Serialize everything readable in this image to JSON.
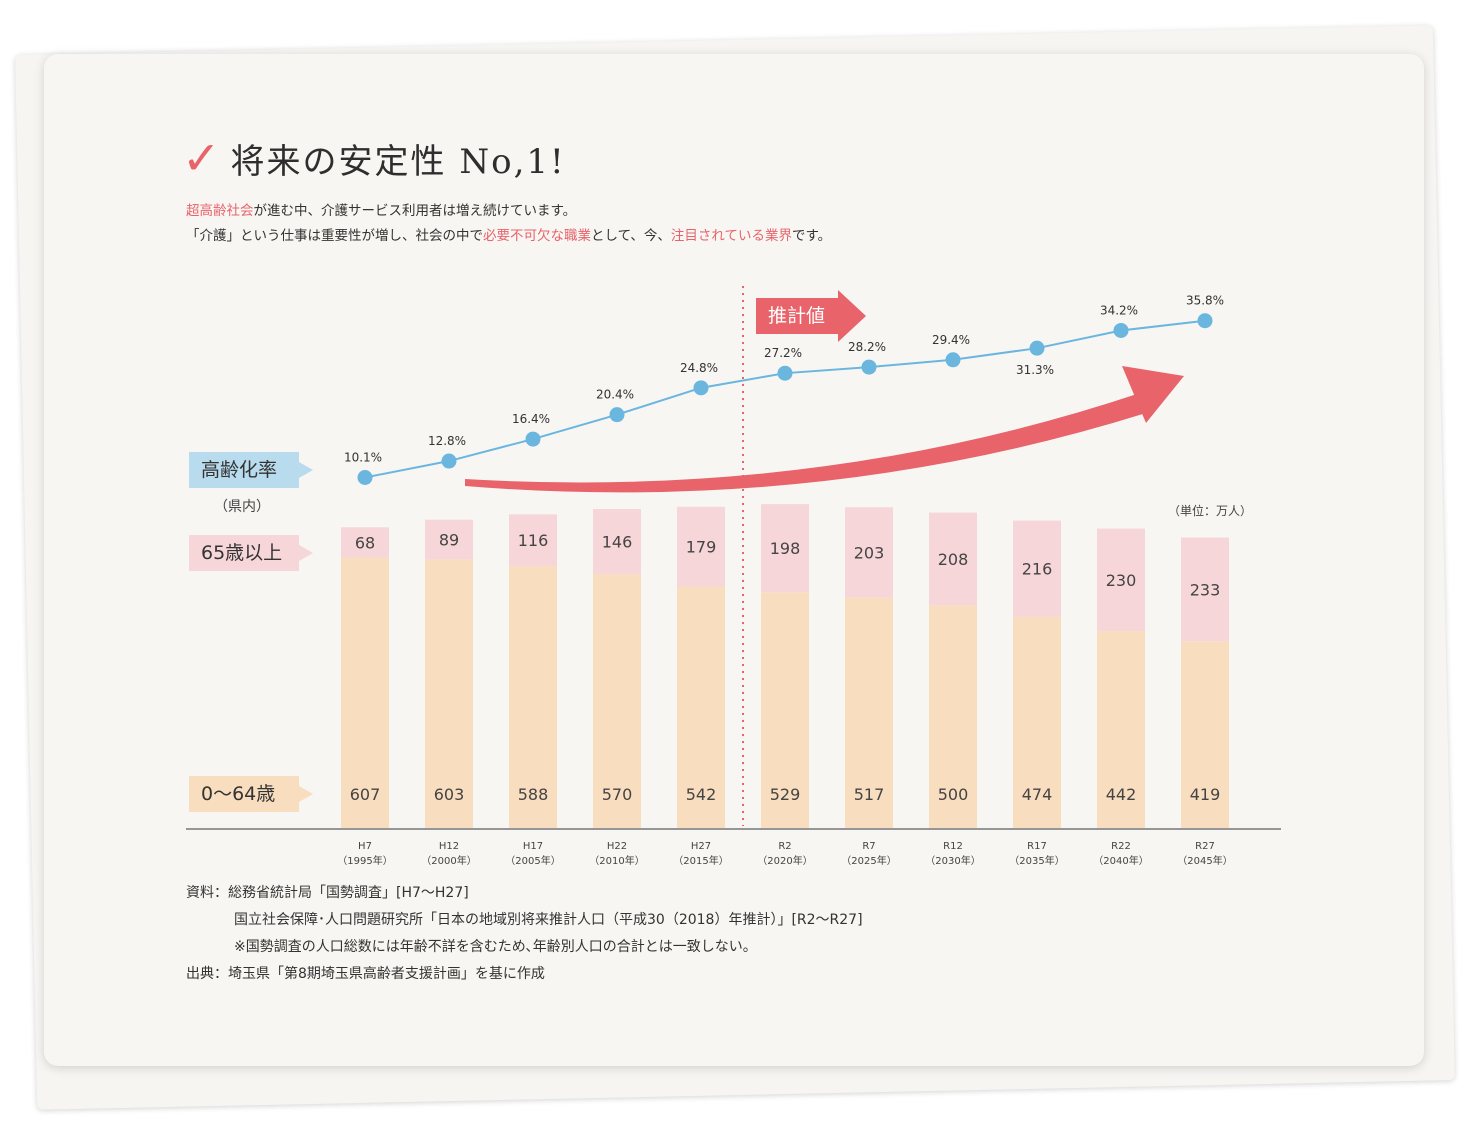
{
  "heading": {
    "check": "✓",
    "title": "将来の安定性 No,1!"
  },
  "intro": {
    "line1_red": "超高齢社会",
    "line1_rest": "が進む中、介護サービス利用者は増え続けています。",
    "line2_a": "「介護」という仕事は重要性が増し、社会の中で",
    "line2_red1": "必要不可欠な職業",
    "line2_b": "として、今、",
    "line2_red2": "注目されている業界",
    "line2_c": "です。"
  },
  "labels": {
    "rate": "高齢化率",
    "kennai": "（県内）",
    "old": "65歳以上",
    "young": "0〜64歳",
    "unit": "（単位：万人）",
    "estimate": "推計値"
  },
  "source": {
    "line1": "資料：総務省統計局「国勢調査」[H7〜H27]",
    "line2": "国立社会保障･人口問題研究所「日本の地域別将来推計人口（平成30（2018）年推計）」[R2〜R27]",
    "line3": "※国勢調査の人口総数には年齢不詳を含むため､年齢別人口の合計とは一致しない。",
    "line4": "出典：埼玉県「第8期埼玉県高齢者支援計画」を基に作成"
  },
  "colors": {
    "accent": "#e8636a",
    "line": "#6bb6df",
    "old_bar": "#f6d6d8",
    "young_bar": "#f8ddbf",
    "rate_tag": "#b8dbee"
  },
  "chart_data": {
    "type": "bar",
    "stacked": true,
    "categories": [
      "H7",
      "H12",
      "H17",
      "H22",
      "H27",
      "R2",
      "R7",
      "R12",
      "R17",
      "R22",
      "R27"
    ],
    "category_years": [
      "（1995年）",
      "（2000年）",
      "（2005年）",
      "（2010年）",
      "（2015年）",
      "（2020年）",
      "（2025年）",
      "（2030年）",
      "（2035年）",
      "（2040年）",
      "（2045年）"
    ],
    "series": [
      {
        "name": "0〜64歳",
        "values": [
          607,
          603,
          588,
          570,
          542,
          529,
          517,
          500,
          474,
          442,
          419
        ]
      },
      {
        "name": "65歳以上",
        "values": [
          68,
          89,
          116,
          146,
          179,
          198,
          203,
          208,
          216,
          230,
          233
        ]
      }
    ],
    "line_series": {
      "name": "高齢化率",
      "values": [
        10.1,
        12.8,
        16.4,
        20.4,
        24.8,
        27.2,
        28.2,
        29.4,
        31.3,
        34.2,
        35.8
      ],
      "labels": [
        "10.1%",
        "12.8%",
        "16.4%",
        "20.4%",
        "24.8%",
        "27.2%",
        "28.2%",
        "29.4%",
        "31.3%",
        "34.2%",
        "35.8%"
      ]
    },
    "estimate_start_category": "R2",
    "unit": "（単位：万人）"
  }
}
